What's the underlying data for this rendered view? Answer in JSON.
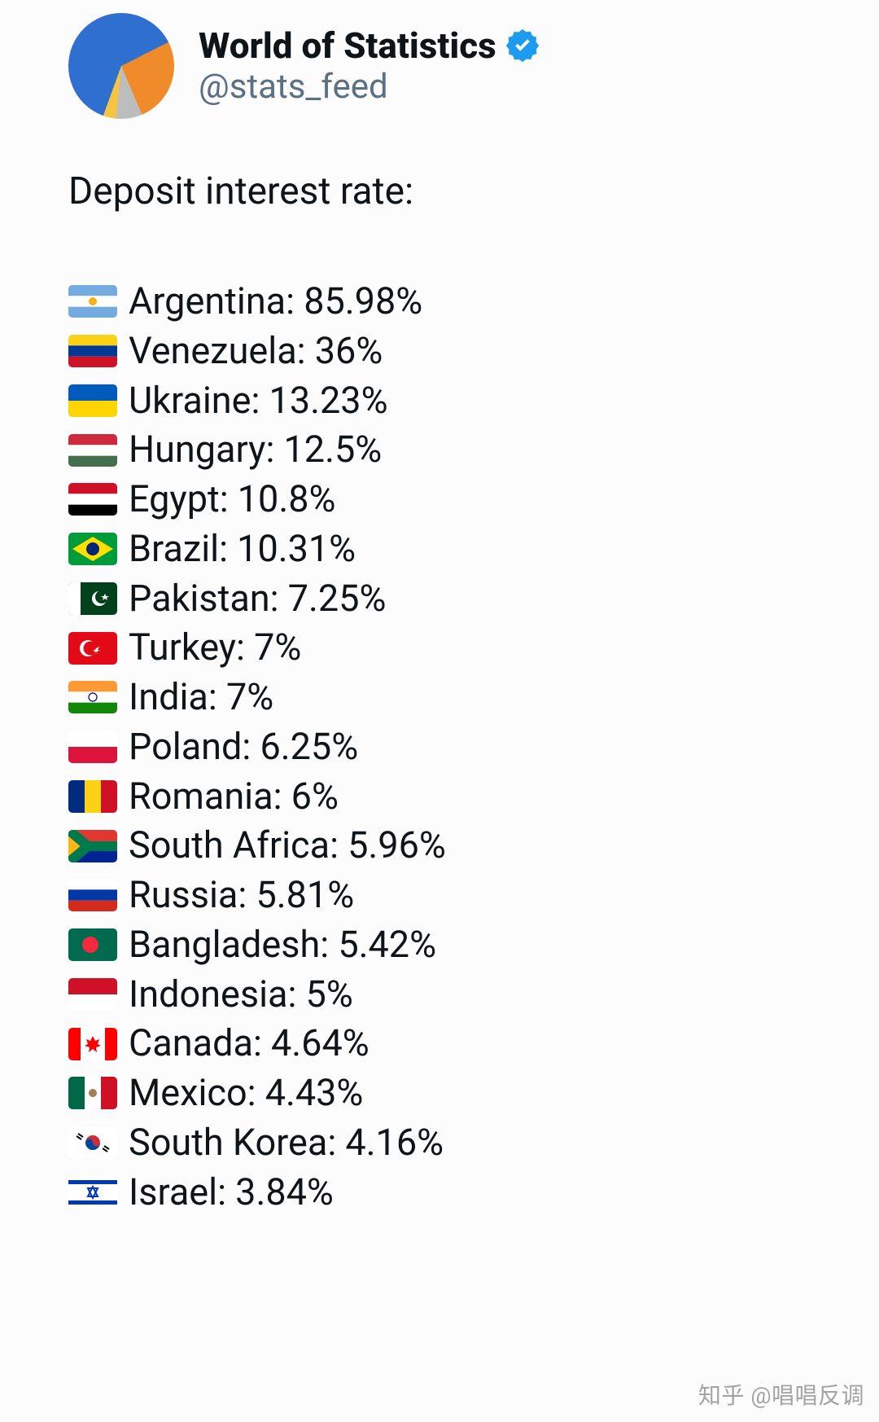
{
  "header": {
    "display_name": "World of Statistics",
    "handle": "@stats_feed",
    "verified_color": "#1d9bf0",
    "avatar_pie": {
      "slices": [
        {
          "color": "#2f6fd0",
          "pct": 62
        },
        {
          "color": "#f08b2c",
          "pct": 26
        },
        {
          "color": "#bdbdbd",
          "pct": 8
        },
        {
          "color": "#f4c542",
          "pct": 4
        }
      ],
      "bg": "#ffffff"
    }
  },
  "title": "Deposit interest rate:",
  "text_color": "#0f1419",
  "handle_color": "#5b7083",
  "font_size_row": 45,
  "countries": [
    {
      "name": "Argentina",
      "rate": "85.98%",
      "flag": {
        "type": "h3",
        "c": [
          "#74acdf",
          "#ffffff",
          "#74acdf"
        ],
        "sun": "#f6b40e"
      }
    },
    {
      "name": "Venezuela",
      "rate": "36%",
      "flag": {
        "type": "h3",
        "c": [
          "#fcd116",
          "#003893",
          "#ce1126"
        ]
      }
    },
    {
      "name": "Ukraine",
      "rate": "13.23%",
      "flag": {
        "type": "h2",
        "c": [
          "#005bbb",
          "#ffd500"
        ]
      }
    },
    {
      "name": "Hungary",
      "rate": "12.5%",
      "flag": {
        "type": "h3",
        "c": [
          "#cd2a3e",
          "#ffffff",
          "#436f4d"
        ]
      }
    },
    {
      "name": "Egypt",
      "rate": "10.8%",
      "flag": {
        "type": "h3",
        "c": [
          "#ce1126",
          "#ffffff",
          "#000000"
        ]
      }
    },
    {
      "name": "Brazil",
      "rate": "10.31%",
      "flag": {
        "type": "brazil",
        "bg": "#009b3a",
        "diamond": "#fedf00",
        "circle": "#002776"
      }
    },
    {
      "name": "Pakistan",
      "rate": "7.25%",
      "flag": {
        "type": "pakistan",
        "bg": "#01411c",
        "bar": "#ffffff",
        "sym": "#ffffff"
      }
    },
    {
      "name": "Turkey",
      "rate": "7%",
      "flag": {
        "type": "turkey",
        "bg": "#e30a17",
        "sym": "#ffffff"
      }
    },
    {
      "name": "India",
      "rate": "7%",
      "flag": {
        "type": "h3",
        "c": [
          "#ff9933",
          "#ffffff",
          "#138808"
        ],
        "wheel": "#000080"
      }
    },
    {
      "name": "Poland",
      "rate": "6.25%",
      "flag": {
        "type": "h2",
        "c": [
          "#ffffff",
          "#dc143c"
        ]
      }
    },
    {
      "name": "Romania",
      "rate": "6%",
      "flag": {
        "type": "v3",
        "c": [
          "#002b7f",
          "#fcd116",
          "#ce1126"
        ]
      }
    },
    {
      "name": "South Africa",
      "rate": "5.96%",
      "flag": {
        "type": "za"
      }
    },
    {
      "name": "Russia",
      "rate": "5.81%",
      "flag": {
        "type": "h3",
        "c": [
          "#ffffff",
          "#0039a6",
          "#d52b1e"
        ]
      }
    },
    {
      "name": "Bangladesh",
      "rate": "5.42%",
      "flag": {
        "type": "disc",
        "bg": "#006a4e",
        "disc": "#f42a41"
      }
    },
    {
      "name": "Indonesia",
      "rate": "5%",
      "flag": {
        "type": "h2",
        "c": [
          "#ce1126",
          "#ffffff"
        ]
      }
    },
    {
      "name": "Canada",
      "rate": "4.64%",
      "flag": {
        "type": "canada",
        "red": "#ff0000",
        "white": "#ffffff"
      }
    },
    {
      "name": "Mexico",
      "rate": "4.43%",
      "flag": {
        "type": "v3",
        "c": [
          "#006847",
          "#ffffff",
          "#ce1126"
        ],
        "seal": "#a67c52"
      }
    },
    {
      "name": "South Korea",
      "rate": "4.16%",
      "flag": {
        "type": "korea",
        "bg": "#ffffff",
        "red": "#cd2e3a",
        "blue": "#0047a0",
        "bars": "#000000"
      }
    },
    {
      "name": "Israel",
      "rate": "3.84%",
      "flag": {
        "type": "israel",
        "bg": "#ffffff",
        "blue": "#0038b8"
      }
    }
  ],
  "watermark": "知乎 @唱唱反调"
}
